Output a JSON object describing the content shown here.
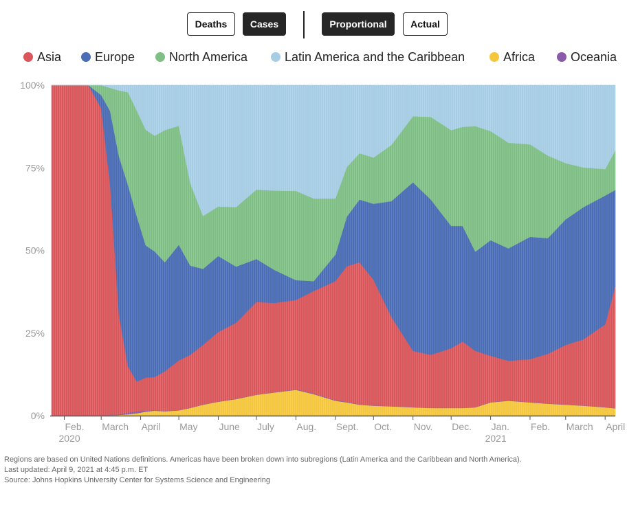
{
  "toggles": {
    "metric": [
      {
        "label": "Deaths",
        "active": false
      },
      {
        "label": "Cases",
        "active": true
      }
    ],
    "mode": [
      {
        "label": "Proportional",
        "active": true
      },
      {
        "label": "Actual",
        "active": false
      }
    ]
  },
  "legend": [
    {
      "label": "Asia",
      "color": "#d9575b"
    },
    {
      "label": "Europe",
      "color": "#4a6db5"
    },
    {
      "label": "North America",
      "color": "#7fbf85"
    },
    {
      "label": "Latin America and the Caribbean",
      "color": "#a6cde4"
    },
    {
      "label": "Africa",
      "color": "#f5c73d"
    },
    {
      "label": "Oceania",
      "color": "#8a5aa8"
    }
  ],
  "notes": [
    "Regions are based on United Nations definitions. Americas have been broken down into subregions (Latin America and the Caribbean and North America).",
    "Last updated: April 9, 2021 at 4:45 p.m. ET",
    "Source: Johns Hopkins University Center for Systems Science and Engineering"
  ],
  "chart_data": {
    "type": "area",
    "stacked": true,
    "ylim": [
      0,
      100
    ],
    "y_ticks": [
      "0%",
      "25%",
      "50%",
      "75%",
      "100%"
    ],
    "x_tick_labels": [
      {
        "month": "2020-02",
        "label": "Feb.",
        "sub": "2020"
      },
      {
        "month": "2020-03",
        "label": "March"
      },
      {
        "month": "2020-04",
        "label": "April"
      },
      {
        "month": "2020-05",
        "label": "May"
      },
      {
        "month": "2020-06",
        "label": "June"
      },
      {
        "month": "2020-07",
        "label": "July"
      },
      {
        "month": "2020-08",
        "label": "Aug."
      },
      {
        "month": "2020-09",
        "label": "Sept."
      },
      {
        "month": "2020-10",
        "label": "Oct."
      },
      {
        "month": "2020-11",
        "label": "Nov."
      },
      {
        "month": "2020-12",
        "label": "Dec."
      },
      {
        "month": "2021-01",
        "label": "Jan.",
        "sub": "2021"
      },
      {
        "month": "2021-02",
        "label": "Feb."
      },
      {
        "month": "2021-03",
        "label": "March"
      },
      {
        "month": "2021-04",
        "label": "April"
      }
    ],
    "x": [
      "2020-01-22",
      "2020-02-05",
      "2020-02-20",
      "2020-03-01",
      "2020-03-08",
      "2020-03-15",
      "2020-03-22",
      "2020-03-29",
      "2020-04-05",
      "2020-04-12",
      "2020-04-20",
      "2020-05-01",
      "2020-05-10",
      "2020-05-20",
      "2020-06-01",
      "2020-06-15",
      "2020-07-01",
      "2020-07-15",
      "2020-08-01",
      "2020-08-15",
      "2020-09-01",
      "2020-09-10",
      "2020-09-20",
      "2020-10-01",
      "2020-10-15",
      "2020-11-01",
      "2020-11-15",
      "2020-12-01",
      "2020-12-10",
      "2020-12-20",
      "2021-01-01",
      "2021-01-15",
      "2021-02-01",
      "2021-02-15",
      "2021-03-01",
      "2021-03-15",
      "2021-04-01",
      "2021-04-09"
    ],
    "series": [
      {
        "name": "Africa",
        "values": [
          0,
          0,
          0,
          0,
          0.1,
          0.2,
          0.4,
          0.7,
          1.2,
          1.5,
          1.3,
          1.6,
          2.3,
          3.3,
          4.2,
          5,
          6.3,
          7,
          7.8,
          6.5,
          4.5,
          4,
          3.3,
          3,
          2.8,
          2.5,
          2.3,
          2.3,
          2.3,
          2.5,
          4,
          4.5,
          4,
          3.6,
          3.3,
          3,
          2.5,
          2.2
        ]
      },
      {
        "name": "Oceania",
        "values": [
          0,
          0,
          0,
          0,
          0.1,
          0.2,
          0.5,
          0.6,
          0.3,
          0.2,
          0.1,
          0.1,
          0.1,
          0.1,
          0.1,
          0.1,
          0.1,
          0.1,
          0.2,
          0.2,
          0.2,
          0.2,
          0.1,
          0.1,
          0.1,
          0.1,
          0.1,
          0.1,
          0.1,
          0.1,
          0.1,
          0.1,
          0.1,
          0.1,
          0.1,
          0.1,
          0.1,
          0.1
        ]
      },
      {
        "name": "Asia",
        "values": [
          100,
          100,
          100,
          93,
          70,
          30,
          14,
          9,
          10,
          10,
          12,
          15,
          16,
          18,
          21,
          23,
          28,
          27,
          27,
          31,
          36,
          41,
          43,
          38,
          27,
          17,
          16,
          18,
          20,
          17,
          14,
          12,
          13,
          15,
          18,
          20,
          25,
          37
        ]
      },
      {
        "name": "Europe",
        "values": [
          0,
          0,
          0,
          4,
          22,
          48,
          55,
          50,
          40,
          38,
          33,
          35,
          27,
          23,
          23,
          17,
          13,
          10,
          6,
          3,
          8,
          15,
          19,
          23,
          35,
          51,
          47,
          37,
          35,
          30,
          35,
          34,
          37,
          35,
          38,
          40,
          39,
          29
        ]
      },
      {
        "name": "North America",
        "values": [
          0,
          0,
          0,
          3,
          7,
          20,
          28,
          32,
          35,
          35,
          40,
          36,
          25,
          16,
          15,
          18,
          21,
          24,
          27,
          25,
          17,
          15,
          14,
          14,
          17,
          20,
          25,
          29,
          30,
          38,
          33,
          32,
          28,
          25,
          17,
          12,
          8,
          12
        ]
      },
      {
        "name": "Latin America and the Caribbean",
        "values": [
          0,
          0,
          0,
          0,
          0.8,
          1.6,
          2.1,
          7.7,
          13.5,
          15.3,
          13.6,
          12.3,
          29.6,
          39.6,
          36.7,
          36.9,
          31.6,
          31.9,
          32,
          34.3,
          34.3,
          24.8,
          20.6,
          21.9,
          18.1,
          9.4,
          9.6,
          13.6,
          12.6,
          12.4,
          13.9,
          17.4,
          17.9,
          21.3,
          23.6,
          24.9,
          25.4,
          19.7
        ]
      }
    ]
  }
}
